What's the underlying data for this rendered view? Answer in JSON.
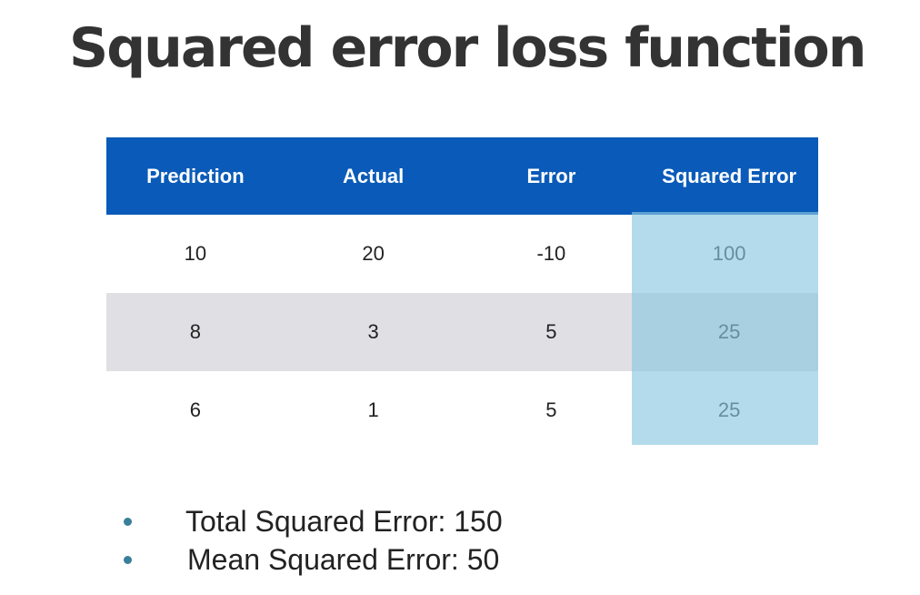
{
  "title": "Squared error loss function",
  "table": {
    "headers": [
      "Prediction",
      "Actual",
      "Error",
      "Squared Error"
    ],
    "rows": [
      [
        "10",
        "20",
        "-10",
        "100"
      ],
      [
        "8",
        "3",
        "5",
        "25"
      ],
      [
        "6",
        "1",
        "5",
        "25"
      ]
    ],
    "highlight_color": "#8cc8e1",
    "header_color": "#0a5bb9"
  },
  "bullets": [
    "Total Squared Error: 150",
    "Mean Squared Error: 50"
  ]
}
